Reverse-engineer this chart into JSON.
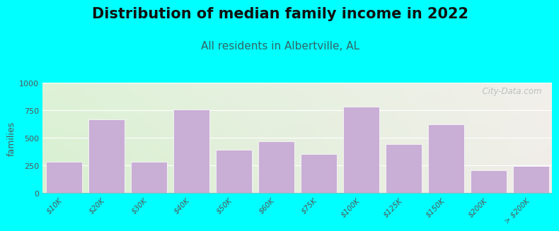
{
  "title": "Distribution of median family income in 2022",
  "subtitle": "All residents in Albertville, AL",
  "categories": [
    "$10K",
    "$20K",
    "$30K",
    "$40K",
    "$50K",
    "$60K",
    "$75K",
    "$100K",
    "$125K",
    "$150K",
    "$200K",
    "> $200K"
  ],
  "values": [
    280,
    665,
    285,
    760,
    390,
    470,
    350,
    785,
    440,
    620,
    205,
    245
  ],
  "bar_color": "#c9aed6",
  "bar_edge_color": "#ffffff",
  "background_color": "#00ffff",
  "plot_bg_color_left": "#d8f0d0",
  "plot_bg_color_right": "#f0ede8",
  "ylabel": "families",
  "ylim": [
    0,
    1000
  ],
  "yticks": [
    0,
    250,
    500,
    750,
    1000
  ],
  "title_fontsize": 15,
  "subtitle_fontsize": 11,
  "subtitle_color": "#336666",
  "watermark": "  City-Data.com",
  "watermark_color": "#b0b8b8",
  "watermark_icon_color": "#b0b8b8"
}
